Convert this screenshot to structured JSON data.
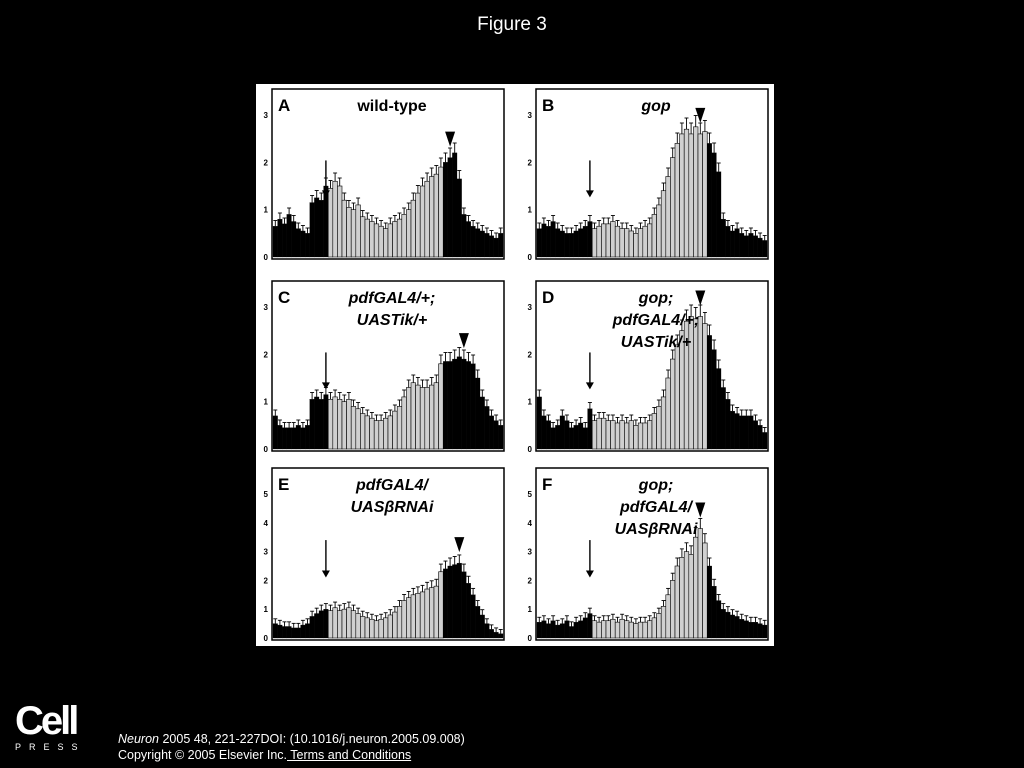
{
  "slide": {
    "title": "Figure 3",
    "logo": {
      "wordmark": "Cell",
      "sub": "PRESS"
    },
    "citation": {
      "journal": "Neuron",
      "ref": " 2005 48, 221-227DOI: (10.1016/j.neuron.2005.09.008)",
      "copyright": "Copyright © 2005 Elsevier Inc.",
      "terms": " Terms and Conditions"
    }
  },
  "colors": {
    "background": "#000000",
    "panel": "#ffffff",
    "dark_bar": "#000000",
    "light_bar": "#d0d0d0"
  },
  "chart_data": [
    {
      "type": "bar",
      "panel": "A",
      "title_lines": [
        "wild-type"
      ],
      "ylim": [
        0,
        3
      ],
      "yticks": [
        "0",
        "1",
        "2",
        "3"
      ],
      "light_range": [
        12,
        36
      ],
      "arrow_bin": 11,
      "triangle_bin": 38,
      "values": [
        0.65,
        0.8,
        0.7,
        0.9,
        0.75,
        0.6,
        0.55,
        0.5,
        1.15,
        1.25,
        1.2,
        1.5,
        1.45,
        1.6,
        1.5,
        1.2,
        1.05,
        1.0,
        1.1,
        0.85,
        0.8,
        0.75,
        0.7,
        0.65,
        0.6,
        0.7,
        0.75,
        0.8,
        0.9,
        1.0,
        1.2,
        1.35,
        1.5,
        1.6,
        1.7,
        1.75,
        1.9,
        2.0,
        2.1,
        2.2,
        1.65,
        0.9,
        0.75,
        0.65,
        0.6,
        0.55,
        0.5,
        0.45,
        0.4,
        0.5
      ]
    },
    {
      "type": "bar",
      "panel": "B",
      "title_lines": [
        "gop"
      ],
      "ylim": [
        0,
        3
      ],
      "yticks": [
        "0",
        "1",
        "2",
        "3"
      ],
      "light_range": [
        12,
        36
      ],
      "arrow_bin": 11,
      "triangle_bin": 35,
      "values": [
        0.6,
        0.7,
        0.65,
        0.75,
        0.6,
        0.55,
        0.5,
        0.5,
        0.55,
        0.6,
        0.65,
        0.75,
        0.6,
        0.65,
        0.7,
        0.7,
        0.75,
        0.65,
        0.6,
        0.6,
        0.55,
        0.5,
        0.6,
        0.65,
        0.7,
        0.9,
        1.1,
        1.4,
        1.7,
        2.1,
        2.4,
        2.6,
        2.7,
        2.6,
        2.75,
        2.6,
        2.65,
        2.4,
        2.2,
        1.8,
        0.8,
        0.65,
        0.55,
        0.6,
        0.5,
        0.45,
        0.5,
        0.45,
        0.4,
        0.35
      ]
    },
    {
      "type": "bar",
      "panel": "C",
      "title_lines": [
        "pdfGAL4/+;",
        "UASTik/+"
      ],
      "ylim": [
        0,
        3
      ],
      "yticks": [
        "0",
        "1",
        "2",
        "3"
      ],
      "light_range": [
        12,
        36
      ],
      "arrow_bin": 11,
      "triangle_bin": 41,
      "values": [
        0.7,
        0.5,
        0.45,
        0.45,
        0.45,
        0.5,
        0.45,
        0.5,
        1.05,
        1.1,
        1.05,
        1.15,
        1.05,
        1.1,
        1.05,
        1.0,
        1.05,
        0.9,
        0.85,
        0.75,
        0.7,
        0.65,
        0.6,
        0.6,
        0.65,
        0.7,
        0.8,
        0.9,
        1.1,
        1.3,
        1.4,
        1.35,
        1.3,
        1.3,
        1.35,
        1.4,
        1.8,
        1.85,
        1.85,
        1.9,
        1.95,
        1.9,
        1.85,
        1.8,
        1.5,
        1.1,
        0.9,
        0.7,
        0.6,
        0.5
      ]
    },
    {
      "type": "bar",
      "panel": "D",
      "title_lines": [
        "gop;",
        "pdfGAL4/+;",
        "UASTik/+"
      ],
      "ylim": [
        0,
        3
      ],
      "yticks": [
        "0",
        "1",
        "2",
        "3"
      ],
      "light_range": [
        12,
        36
      ],
      "arrow_bin": 11,
      "triangle_bin": 35,
      "values": [
        1.1,
        0.7,
        0.6,
        0.45,
        0.5,
        0.7,
        0.6,
        0.45,
        0.5,
        0.55,
        0.45,
        0.85,
        0.6,
        0.65,
        0.65,
        0.6,
        0.6,
        0.55,
        0.6,
        0.55,
        0.6,
        0.5,
        0.55,
        0.55,
        0.6,
        0.75,
        0.9,
        1.1,
        1.5,
        1.9,
        2.2,
        2.5,
        2.7,
        2.8,
        2.75,
        2.8,
        2.65,
        2.4,
        2.1,
        1.7,
        1.3,
        1.05,
        0.8,
        0.75,
        0.7,
        0.7,
        0.7,
        0.6,
        0.5,
        0.35
      ]
    },
    {
      "type": "bar",
      "panel": "E",
      "title_lines": [
        "pdfGAL4/",
        "UASβRNAi"
      ],
      "ylim": [
        0,
        5
      ],
      "yticks": [
        "0",
        "1",
        "2",
        "3",
        "4",
        "5"
      ],
      "light_range": [
        12,
        36
      ],
      "arrow_bin": 11,
      "triangle_bin": 40,
      "values": [
        0.5,
        0.45,
        0.4,
        0.4,
        0.35,
        0.35,
        0.45,
        0.5,
        0.75,
        0.85,
        0.95,
        1.0,
        0.95,
        1.05,
        0.95,
        1.0,
        1.05,
        0.95,
        0.85,
        0.75,
        0.7,
        0.65,
        0.6,
        0.65,
        0.7,
        0.8,
        0.9,
        1.1,
        1.3,
        1.4,
        1.5,
        1.55,
        1.6,
        1.7,
        1.75,
        1.8,
        2.3,
        2.4,
        2.5,
        2.55,
        2.6,
        2.3,
        1.9,
        1.5,
        1.1,
        0.8,
        0.5,
        0.3,
        0.2,
        0.15
      ]
    },
    {
      "type": "bar",
      "panel": "F",
      "title_lines": [
        "gop;",
        "pdfGAL4/",
        "UASβRNAi"
      ],
      "ylim": [
        0,
        5
      ],
      "yticks": [
        "0",
        "1",
        "2",
        "3",
        "4",
        "5"
      ],
      "light_range": [
        12,
        36
      ],
      "arrow_bin": 11,
      "triangle_bin": 35,
      "values": [
        0.55,
        0.6,
        0.5,
        0.6,
        0.45,
        0.5,
        0.6,
        0.4,
        0.55,
        0.6,
        0.7,
        0.85,
        0.6,
        0.55,
        0.6,
        0.6,
        0.65,
        0.55,
        0.65,
        0.6,
        0.55,
        0.5,
        0.55,
        0.55,
        0.6,
        0.7,
        0.85,
        1.1,
        1.5,
        2.0,
        2.5,
        2.8,
        3.0,
        2.9,
        3.5,
        3.8,
        3.3,
        2.5,
        1.8,
        1.3,
        1.0,
        0.9,
        0.8,
        0.75,
        0.65,
        0.6,
        0.55,
        0.55,
        0.5,
        0.45
      ]
    }
  ]
}
